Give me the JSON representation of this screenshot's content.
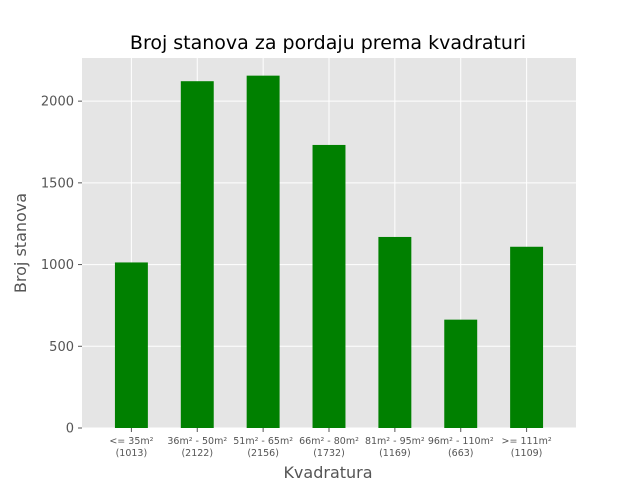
{
  "chart_data": {
    "type": "bar",
    "title": "Broj stanova za pordaju prema kvadraturi",
    "xlabel": "Kvadratura",
    "ylabel": "Broj stanova",
    "categories": [
      [
        "<= 35m²",
        "(1013)"
      ],
      [
        "36m² - 50m²",
        "(2122)"
      ],
      [
        "51m² - 65m²",
        "(2156)"
      ],
      [
        "66m² - 80m²",
        "(1732)"
      ],
      [
        "81m² - 95m²",
        "(1169)"
      ],
      [
        "96m² - 110m²",
        "(663)"
      ],
      [
        ">= 111m²",
        "(1109)"
      ]
    ],
    "values": [
      1013,
      2122,
      2156,
      1732,
      1169,
      663,
      1109
    ],
    "yticks": [
      0,
      500,
      1000,
      1500,
      2000
    ],
    "ylim": [
      0,
      2264
    ],
    "grid": true,
    "colors": {
      "bar": "#008000",
      "plot_bg": "#e5e5e5",
      "grid": "#ffffff",
      "text": "#555555"
    }
  }
}
